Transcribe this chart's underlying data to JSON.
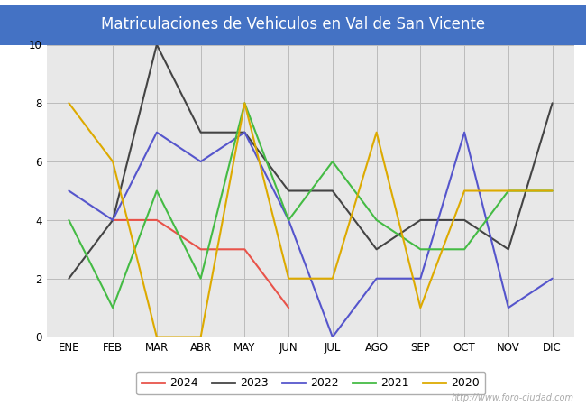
{
  "title": "Matriculaciones de Vehiculos en Val de San Vicente",
  "title_bg_color": "#4472c4",
  "title_text_color": "#ffffff",
  "months": [
    "ENE",
    "FEB",
    "MAR",
    "ABR",
    "MAY",
    "JUN",
    "JUL",
    "AGO",
    "SEP",
    "OCT",
    "NOV",
    "DIC"
  ],
  "series": {
    "2024": {
      "color": "#e8534a",
      "data": [
        null,
        4,
        4,
        3,
        3,
        1,
        null,
        null,
        null,
        null,
        null,
        null
      ]
    },
    "2023": {
      "color": "#444444",
      "data": [
        2,
        4,
        10,
        7,
        7,
        5,
        5,
        3,
        4,
        4,
        3,
        8
      ]
    },
    "2022": {
      "color": "#5555cc",
      "data": [
        5,
        4,
        7,
        6,
        7,
        4,
        0,
        2,
        2,
        7,
        1,
        2
      ]
    },
    "2021": {
      "color": "#44bb44",
      "data": [
        4,
        1,
        5,
        2,
        8,
        4,
        6,
        4,
        3,
        3,
        5,
        5
      ]
    },
    "2020": {
      "color": "#ddaa00",
      "data": [
        8,
        6,
        0,
        0,
        8,
        2,
        2,
        7,
        1,
        5,
        5,
        5
      ]
    }
  },
  "ylim": [
    0,
    10
  ],
  "yticks": [
    0,
    2,
    4,
    6,
    8,
    10
  ],
  "grid_color": "#bbbbbb",
  "plot_bg_color": "#e8e8e8",
  "fig_bg_color": "#ffffff",
  "watermark": "http://www.foro-ciudad.com",
  "legend_order": [
    "2024",
    "2023",
    "2022",
    "2021",
    "2020"
  ],
  "linewidth": 1.5
}
